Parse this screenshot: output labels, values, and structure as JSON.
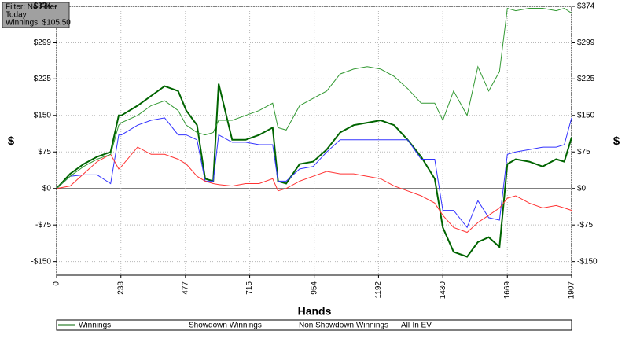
{
  "chart_data": {
    "type": "line",
    "info": [
      "Filter: No Filter",
      "Today",
      "Winnings: $105.50"
    ],
    "xlabel": "Hands",
    "ylabel": "$",
    "x": [
      0,
      50,
      100,
      150,
      200,
      230,
      240,
      300,
      350,
      400,
      450,
      480,
      520,
      550,
      580,
      600,
      650,
      700,
      750,
      800,
      820,
      850,
      900,
      950,
      1000,
      1050,
      1100,
      1150,
      1200,
      1250,
      1300,
      1350,
      1400,
      1430,
      1470,
      1520,
      1560,
      1600,
      1640,
      1669,
      1700,
      1750,
      1800,
      1850,
      1880,
      1907
    ],
    "series": [
      {
        "name": "Winnings",
        "color": "#006400",
        "values": [
          0,
          30,
          50,
          65,
          75,
          150,
          150,
          170,
          190,
          210,
          200,
          160,
          130,
          20,
          15,
          215,
          100,
          100,
          110,
          125,
          15,
          10,
          50,
          55,
          80,
          115,
          130,
          135,
          140,
          130,
          100,
          65,
          20,
          -80,
          -130,
          -140,
          -110,
          -100,
          -120,
          50,
          60,
          55,
          45,
          60,
          55,
          105
        ]
      },
      {
        "name": "Showdown Winnings",
        "color": "#3333ff",
        "values": [
          0,
          25,
          28,
          28,
          10,
          110,
          110,
          130,
          140,
          145,
          110,
          110,
          100,
          15,
          15,
          110,
          95,
          95,
          90,
          90,
          15,
          15,
          40,
          45,
          75,
          100,
          100,
          100,
          100,
          100,
          100,
          60,
          60,
          -45,
          -45,
          -80,
          -25,
          -60,
          -65,
          70,
          75,
          80,
          85,
          85,
          90,
          145
        ]
      },
      {
        "name": "Non Showdown Winnings",
        "color": "#ff3333",
        "values": [
          0,
          5,
          30,
          55,
          70,
          40,
          45,
          85,
          70,
          70,
          60,
          50,
          25,
          15,
          10,
          8,
          5,
          10,
          10,
          20,
          -5,
          0,
          15,
          25,
          35,
          30,
          30,
          25,
          20,
          5,
          -5,
          -15,
          -30,
          -55,
          -80,
          -90,
          -70,
          -55,
          -40,
          -20,
          -15,
          -30,
          -40,
          -35,
          -40,
          -45
        ]
      },
      {
        "name": "All-In EV",
        "color": "#339933",
        "values": [
          0,
          25,
          45,
          60,
          70,
          130,
          135,
          150,
          170,
          180,
          160,
          130,
          115,
          110,
          115,
          140,
          140,
          150,
          160,
          175,
          125,
          120,
          170,
          185,
          200,
          235,
          245,
          250,
          245,
          230,
          205,
          175,
          175,
          140,
          200,
          150,
          250,
          200,
          240,
          370,
          365,
          370,
          370,
          365,
          370,
          360
        ]
      }
    ],
    "xlim": [
      0,
      1907
    ],
    "xticks": [
      0,
      238,
      477,
      715,
      954,
      1192,
      1430,
      1669,
      1907
    ],
    "ylim": [
      -178,
      374
    ],
    "yticks": [
      {
        "value": -150,
        "label": "-$150"
      },
      {
        "value": -75,
        "label": "-$75"
      },
      {
        "value": 0,
        "label": "$0"
      },
      {
        "value": 75,
        "label": "$75"
      },
      {
        "value": 150,
        "label": "$150"
      },
      {
        "value": 225,
        "label": "$225"
      },
      {
        "value": 299,
        "label": "$299"
      },
      {
        "value": 374,
        "label": "$374"
      }
    ],
    "grid": true
  }
}
